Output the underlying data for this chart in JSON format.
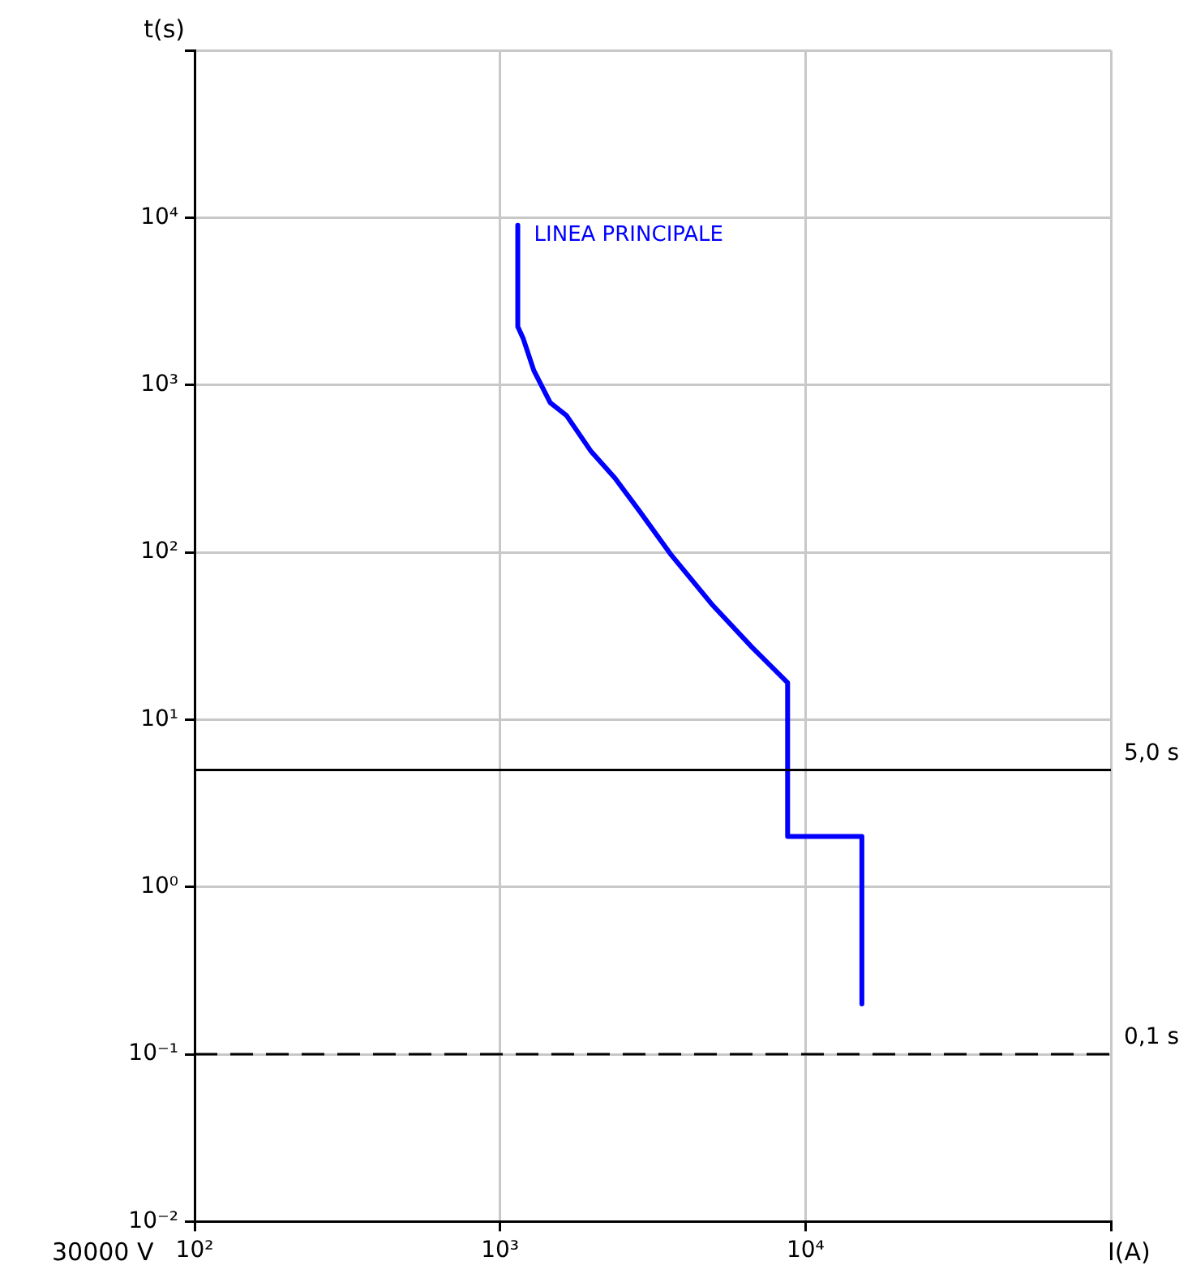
{
  "chart_data": {
    "type": "line",
    "xlabel": "I(A)",
    "ylabel": "t(s)",
    "log": "xy",
    "grid": true,
    "legend": false,
    "marker": "none",
    "line_style": "solid",
    "xlim": [
      100,
      100000
    ],
    "xticks": [
      {
        "value": 100,
        "label": "10²"
      },
      {
        "value": 1000,
        "label": "10³"
      },
      {
        "value": 10000,
        "label": "10⁴"
      },
      {
        "value": 100000,
        "label": null
      }
    ],
    "ylim": [
      0.01,
      100000
    ],
    "yticks": [
      {
        "value": 0.01,
        "label": "10⁻²"
      },
      {
        "value": 0.1,
        "label": "10⁻¹"
      },
      {
        "value": 1,
        "label": "10⁰"
      },
      {
        "value": 10,
        "label": "10¹"
      },
      {
        "value": 100,
        "label": "10²"
      },
      {
        "value": 1000,
        "label": "10³"
      },
      {
        "value": 10000,
        "label": "10⁴"
      },
      {
        "value": 100000,
        "label": null
      }
    ],
    "series": [
      {
        "name": "LINEA PRINCIPALE",
        "color": "#0000ff",
        "x": [
          1143,
          1143,
          1190,
          1290,
          1460,
          1650,
          1980,
          2380,
          2850,
          3640,
          4930,
          6690,
          8740,
          8740,
          15300,
          15300
        ],
        "values": [
          9000,
          2230,
          1900,
          1220,
          783,
          657,
          404,
          277,
          178,
          96,
          49,
          27,
          16.6,
          2,
          2,
          0.2
        ]
      }
    ],
    "ref_lines": [
      {
        "axis": "y",
        "value": 5,
        "label": "5,0 s",
        "color": "#000000",
        "line_style": "solid"
      },
      {
        "axis": "y",
        "value": 0.1,
        "label": "0,1 s",
        "color": "#000000",
        "line_style": "dashed"
      }
    ],
    "annotations": [
      "30000 V"
    ]
  }
}
